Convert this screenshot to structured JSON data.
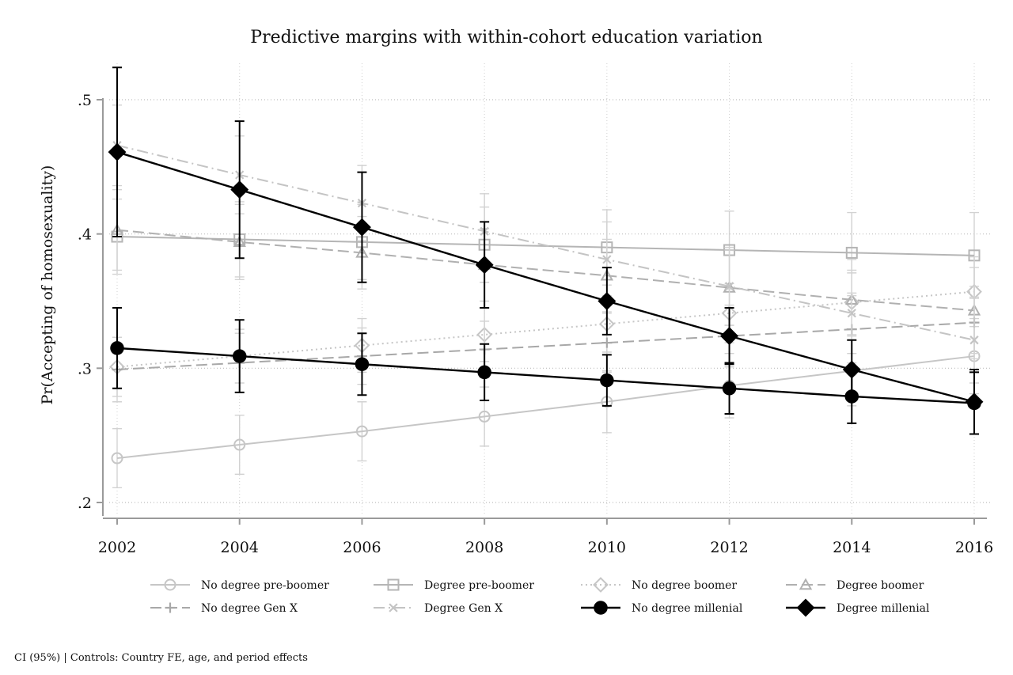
{
  "chart_data": {
    "type": "line",
    "title": "Predictive margins with within-cohort education variation",
    "ylabel": "Pr(Accepting of homosexuality)",
    "xlabel": "",
    "x": [
      2002,
      2004,
      2006,
      2008,
      2010,
      2012,
      2014,
      2016
    ],
    "xticks": [
      "2002",
      "2004",
      "2006",
      "2008",
      "2010",
      "2012",
      "2014",
      "2016"
    ],
    "yticks": [
      ".2",
      ".3",
      ".4",
      ".5"
    ],
    "ytick_values": [
      0.2,
      0.3,
      0.4,
      0.5
    ],
    "xlim": [
      2002,
      2016
    ],
    "ylim": [
      0.19,
      0.53
    ],
    "grid": true,
    "legend_position": "bottom",
    "series": [
      {
        "name": "No degree pre-boomer",
        "values": [
          0.233,
          0.243,
          0.253,
          0.264,
          0.275,
          0.287,
          0.298,
          0.309
        ],
        "ci": [
          0.022,
          0.022,
          0.022,
          0.022,
          0.023,
          0.024,
          0.026,
          0.028
        ],
        "marker": "circle",
        "color": "#c6c6c6",
        "dash": "solid",
        "filled": false
      },
      {
        "name": "Degree pre-boomer",
        "values": [
          0.398,
          0.396,
          0.394,
          0.392,
          0.39,
          0.388,
          0.386,
          0.384
        ],
        "ci": [
          0.028,
          0.028,
          0.028,
          0.028,
          0.028,
          0.029,
          0.03,
          0.032
        ],
        "marker": "square",
        "color": "#b5b5b5",
        "dash": "solid",
        "filled": false
      },
      {
        "name": "No degree boomer",
        "values": [
          0.301,
          0.309,
          0.317,
          0.325,
          0.333,
          0.341,
          0.349,
          0.357
        ],
        "ci": [
          0.022,
          0.02,
          0.02,
          0.02,
          0.021,
          0.022,
          0.024,
          0.026
        ],
        "marker": "diamond",
        "color": "#c6c6c6",
        "dash": "dot",
        "filled": false
      },
      {
        "name": "Degree boomer",
        "values": [
          0.403,
          0.394,
          0.386,
          0.377,
          0.369,
          0.36,
          0.351,
          0.343
        ],
        "ci": [
          0.03,
          0.028,
          0.027,
          0.027,
          0.027,
          0.028,
          0.03,
          0.032
        ],
        "marker": "triangle",
        "color": "#b0b0b0",
        "dash": "longdash",
        "filled": false
      },
      {
        "name": "No degree Gen X",
        "values": [
          0.299,
          0.304,
          0.309,
          0.314,
          0.319,
          0.324,
          0.329,
          0.334
        ],
        "ci": [
          0.024,
          0.022,
          0.021,
          0.021,
          0.022,
          0.023,
          0.025,
          0.027
        ],
        "marker": "plus",
        "color": "#a8a8a8",
        "dash": "longdash",
        "filled": false
      },
      {
        "name": "Degree Gen X",
        "values": [
          0.466,
          0.444,
          0.423,
          0.402,
          0.381,
          0.361,
          0.341,
          0.321
        ],
        "ci": [
          0.03,
          0.029,
          0.028,
          0.028,
          0.028,
          0.029,
          0.03,
          0.032
        ],
        "marker": "x",
        "color": "#c4c4c4",
        "dash": "dashdot",
        "filled": false
      },
      {
        "name": "No degree millenial",
        "values": [
          0.315,
          0.309,
          0.303,
          0.297,
          0.291,
          0.285,
          0.279,
          0.274
        ],
        "ci": [
          0.03,
          0.027,
          0.023,
          0.021,
          0.019,
          0.019,
          0.02,
          0.023
        ],
        "marker": "circle",
        "color": "#000000",
        "dash": "solid",
        "filled": true
      },
      {
        "name": "Degree millenial",
        "values": [
          0.461,
          0.433,
          0.405,
          0.377,
          0.35,
          0.324,
          0.299,
          0.275
        ],
        "ci": [
          0.063,
          0.051,
          0.041,
          0.032,
          0.025,
          0.021,
          0.022,
          0.024
        ],
        "marker": "diamond",
        "color": "#000000",
        "dash": "solid",
        "filled": true
      }
    ]
  },
  "footnote": "CI (95%) | Controls: Country FE, age, and  period effects"
}
